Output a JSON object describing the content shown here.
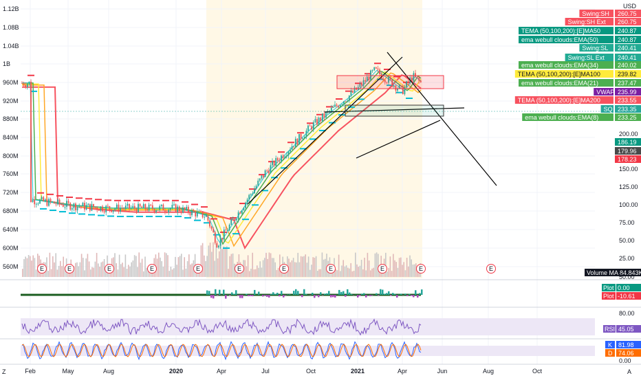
{
  "currency": "USD",
  "left_axis": {
    "ticks": [
      "1.12B",
      "1.08B",
      "1.04B",
      "1B",
      "960M",
      "920M",
      "880M",
      "840M",
      "800M",
      "760M",
      "720M",
      "680M",
      "640M",
      "600M",
      "560M"
    ],
    "range": [
      545000000,
      1130000000
    ]
  },
  "right_axis": {
    "ticks": [
      "200.00",
      "175.00",
      "150.00",
      "125.00",
      "100.00",
      "75.00",
      "50.00",
      "25.00"
    ],
    "log_scale": true
  },
  "time_axis": [
    "Feb",
    "May",
    "Aug",
    "2020",
    "Apr",
    "Jul",
    "Oct",
    "2021",
    "Apr",
    "Jun",
    "Aug",
    "Oct"
  ],
  "price_labels": [
    {
      "name": "Swing:SH",
      "value": "260.75",
      "color": "#f7525f"
    },
    {
      "name": "Swing:SH Ext",
      "value": "260.75",
      "color": "#f7525f"
    },
    {
      "name": "TEMA (50,100,200):[E]MA50",
      "value": "240.87",
      "color": "#089981"
    },
    {
      "name": "ema webull clouds:EMA(50)",
      "value": "240.87",
      "color": "#089981"
    },
    {
      "name": "Swing:SL",
      "value": "240.41",
      "color": "#22ab94"
    },
    {
      "name": "Swing:SL Ext",
      "value": "240.41",
      "color": "#22ab94"
    },
    {
      "name": "ema webull clouds:EMA(34)",
      "value": "240.02",
      "color": "#4caf50"
    },
    {
      "name": "TEMA (50,100,200):[E]MA100",
      "value": "239.82",
      "color": "#ffeb3b"
    },
    {
      "name": "ema webull clouds:EMA(21)",
      "value": "237.47",
      "color": "#4caf50"
    },
    {
      "name": "VWAP",
      "value": "235.99",
      "color": "#7b1fa2"
    },
    {
      "name": "TEMA (50,100,200):[E]MA200",
      "value": "233.55",
      "color": "#f7525f"
    },
    {
      "name": "SQ",
      "value": "233.35",
      "color": "#26a69a"
    },
    {
      "name": "ema webull clouds:EMA(8)",
      "value": "233.25",
      "color": "#4caf50"
    }
  ],
  "lower_price_labels": [
    {
      "value": "186.19",
      "color": "#089981"
    },
    {
      "value": "179.96",
      "color": "#4a4a4a"
    },
    {
      "value": "178.23",
      "color": "#f23645"
    }
  ],
  "volume_label": {
    "name": "Volume MA",
    "value": "84.843K"
  },
  "osc_panel": {
    "ticks": [
      "50.00",
      "0.00"
    ],
    "labels": [
      {
        "name": "Plot",
        "value": "0.00",
        "color": "#089981"
      },
      {
        "name": "Plot",
        "value": "-10.61",
        "color": "#f23645"
      }
    ]
  },
  "rsi_panel": {
    "ticks": [
      "80.00",
      "20.00"
    ],
    "label": {
      "name": "RSI",
      "value": "45.05",
      "color": "#7e57c2"
    }
  },
  "stoch_panel": {
    "ticks": [
      "100.00",
      "0.00"
    ],
    "labels": [
      {
        "name": "K",
        "value": "81.98",
        "color": "#2962ff"
      },
      {
        "name": "D",
        "value": "74.06",
        "color": "#ff6d00"
      }
    ]
  },
  "earnings_marker": "E",
  "bottom_left_icon": "Z",
  "bottom_right_icon": "A",
  "chart_data": {
    "type": "line",
    "log_scale": true,
    "x": [
      "Feb 2019",
      "May 2019",
      "Aug 2019",
      "Jan 2020",
      "Mar 2020",
      "Apr 2020",
      "Jul 2020",
      "Oct 2020",
      "Jan 2021",
      "Feb 2021",
      "Mar 2021",
      "Apr 2021",
      "May 2021"
    ],
    "series": [
      {
        "name": "SQ",
        "values": [
          72,
          68,
          66,
          66,
          61,
          46,
          95,
          150,
          220,
          265,
          215,
          250,
          233
        ]
      }
    ]
  }
}
